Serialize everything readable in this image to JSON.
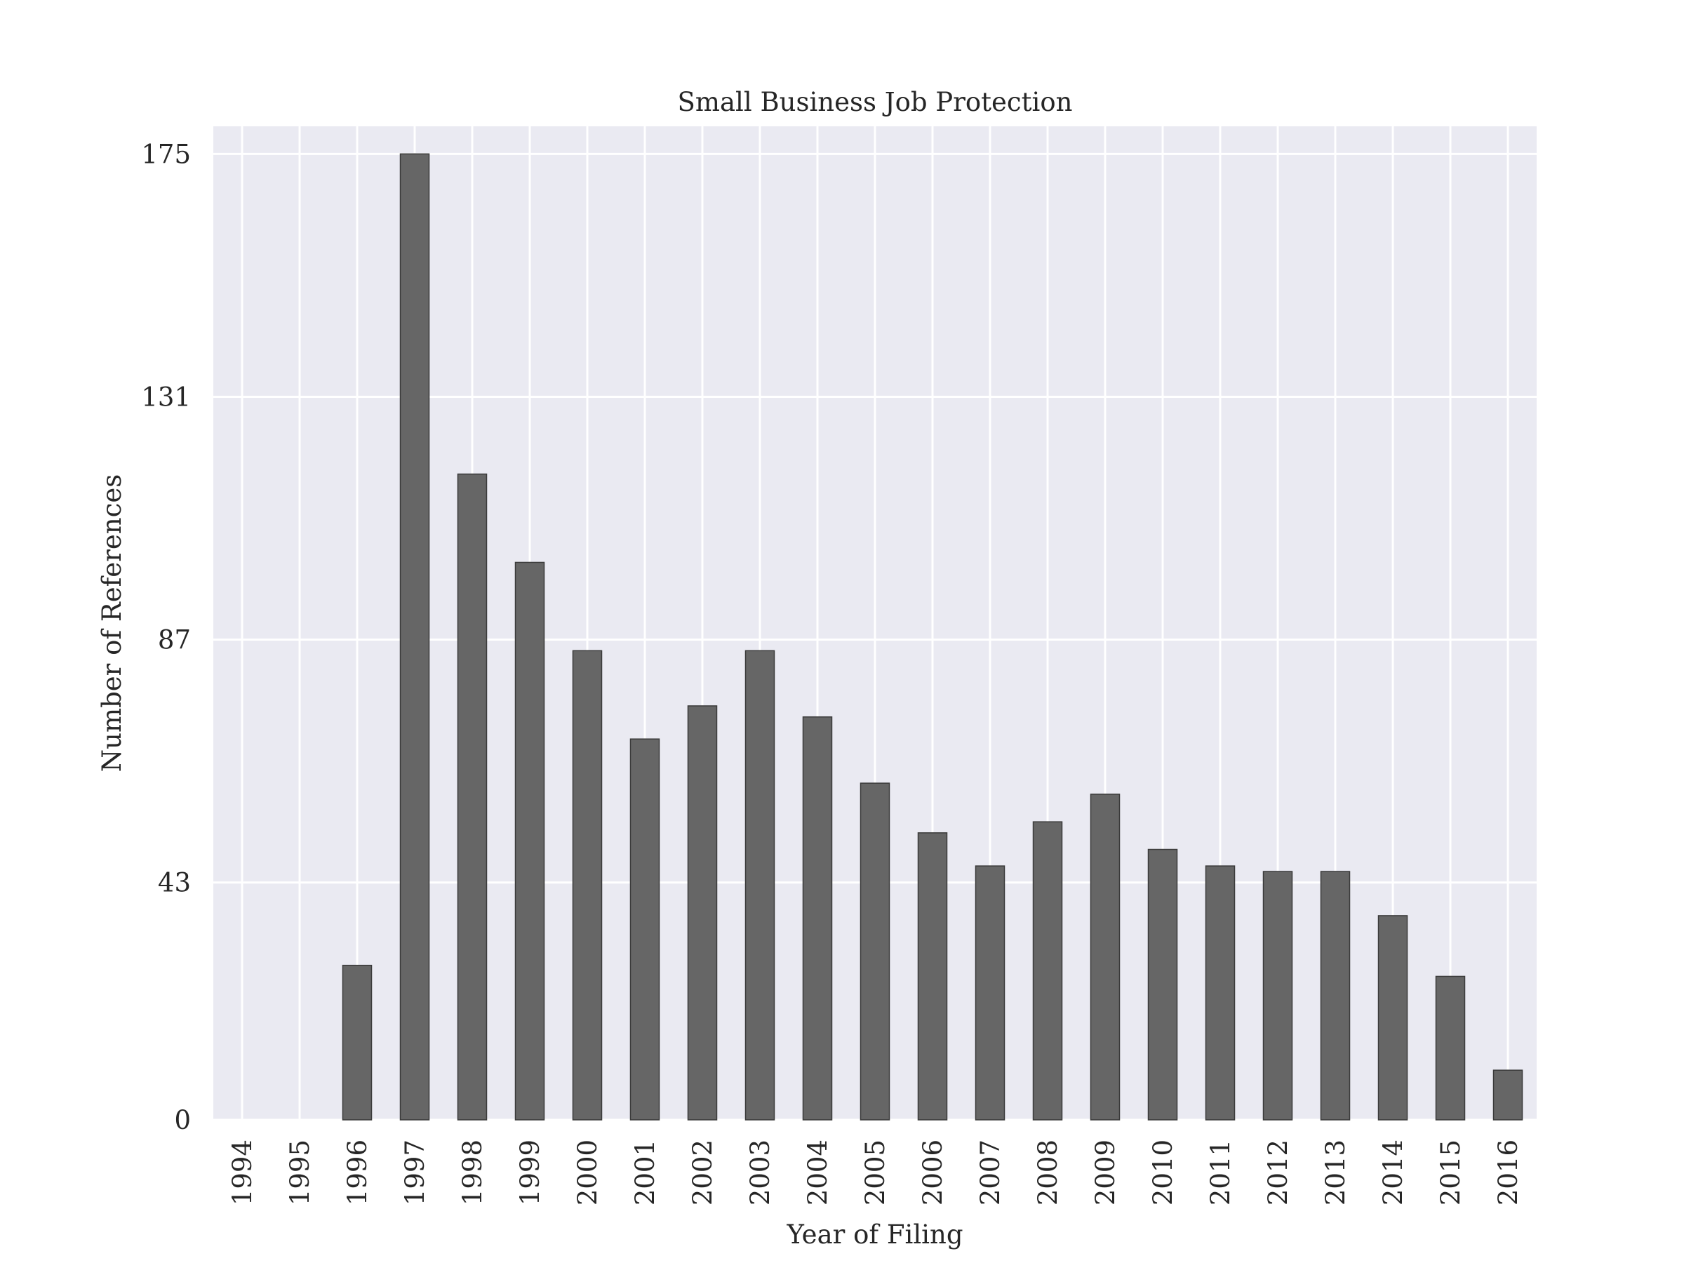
{
  "chart_data": {
    "type": "bar",
    "title": "Small Business Job Protection",
    "xlabel": "Year of Filing",
    "ylabel": "Number of References",
    "categories": [
      "1994",
      "1995",
      "1996",
      "1997",
      "1998",
      "1999",
      "2000",
      "2001",
      "2002",
      "2003",
      "2004",
      "2005",
      "2006",
      "2007",
      "2008",
      "2009",
      "2010",
      "2011",
      "2012",
      "2013",
      "2014",
      "2015",
      "2016"
    ],
    "values": [
      0,
      0,
      28,
      175,
      117,
      101,
      85,
      69,
      75,
      85,
      73,
      61,
      52,
      46,
      54,
      59,
      49,
      46,
      45,
      45,
      37,
      26,
      9
    ],
    "yticks": [
      0,
      43,
      87,
      131,
      175
    ],
    "ylim": [
      0,
      180
    ],
    "grid": true,
    "colors": {
      "background": "#eaeaf2",
      "grid": "#ffffff",
      "bar_fill": "#666666",
      "bar_edge": "#3a3a3a",
      "text": "#262626"
    }
  }
}
